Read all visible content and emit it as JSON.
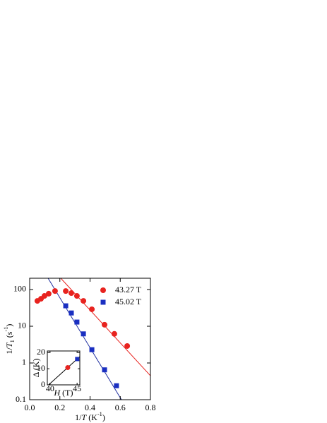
{
  "chart_data": [
    {
      "type": "scatter",
      "log_y": true,
      "xlabel": [
        {
          "text": "1/"
        },
        {
          "text": "T",
          "italic": true
        },
        {
          "text": " (K"
        },
        {
          "text": "-1",
          "sup": true
        },
        {
          "text": ")"
        }
      ],
      "ylabel": [
        {
          "text": "1/"
        },
        {
          "text": "T",
          "italic": true
        },
        {
          "text": "1",
          "sub": true
        },
        {
          "text": " (s"
        },
        {
          "text": "-1",
          "sup": true
        },
        {
          "text": ")"
        }
      ],
      "xlim": [
        0,
        0.8
      ],
      "ylim": [
        0.1,
        203
      ],
      "xticks": [
        {
          "value": 0,
          "label": "0.0"
        },
        0.2,
        0.4,
        0.6,
        0.8
      ],
      "yticks": [
        0.1,
        1,
        10,
        100
      ],
      "legend": "upper right",
      "series": [
        {
          "name": "43.27 T",
          "color": "#e8231f",
          "marker": "circle",
          "x": [
            0.051,
            0.075,
            0.098,
            0.126,
            0.168,
            0.239,
            0.276,
            0.313,
            0.356,
            0.412,
            0.496,
            0.561,
            0.646
          ],
          "values": [
            49,
            56,
            67,
            77,
            91,
            91,
            80,
            67,
            49,
            29,
            11,
            6.2,
            2.9
          ]
        },
        {
          "name": "45.02 T",
          "color": "#1a2fc1",
          "marker": "square",
          "x": [
            0.239,
            0.276,
            0.313,
            0.356,
            0.412,
            0.496,
            0.575
          ],
          "values": [
            36,
            23,
            13,
            6.2,
            2.3,
            0.65,
            0.24
          ]
        }
      ],
      "fits": [
        {
          "color": "#e8231f",
          "x": [
            0.206,
            0.8
          ],
          "values": [
            203,
            0.45
          ]
        },
        {
          "color": "#1f2fa0",
          "x": [
            0.122,
            0.608
          ],
          "values": [
            203,
            0.1
          ]
        }
      ]
    },
    {
      "type": "scatter",
      "log_y": false,
      "xlabel": [
        {
          "text": "H",
          "italic": true
        },
        {
          "text": " (T)"
        }
      ],
      "ylabel": [
        {
          "text": "Δ (K)"
        }
      ],
      "xlim": [
        39.5,
        45.5
      ],
      "ylim": [
        0,
        21
      ],
      "xticks": [
        40,
        45
      ],
      "yticks": [
        0,
        10,
        20
      ],
      "series": [
        {
          "color": "#e8231f",
          "marker": "circle",
          "x": [
            43.27
          ],
          "values": [
            10.7
          ]
        },
        {
          "color": "#1a2fc1",
          "marker": "square",
          "x": [
            45.02
          ],
          "values": [
            16
          ]
        }
      ],
      "fits": [
        {
          "color": "#000000",
          "x": [
            39.74,
            45.5
          ],
          "values": [
            0,
            17.5
          ]
        }
      ]
    }
  ]
}
